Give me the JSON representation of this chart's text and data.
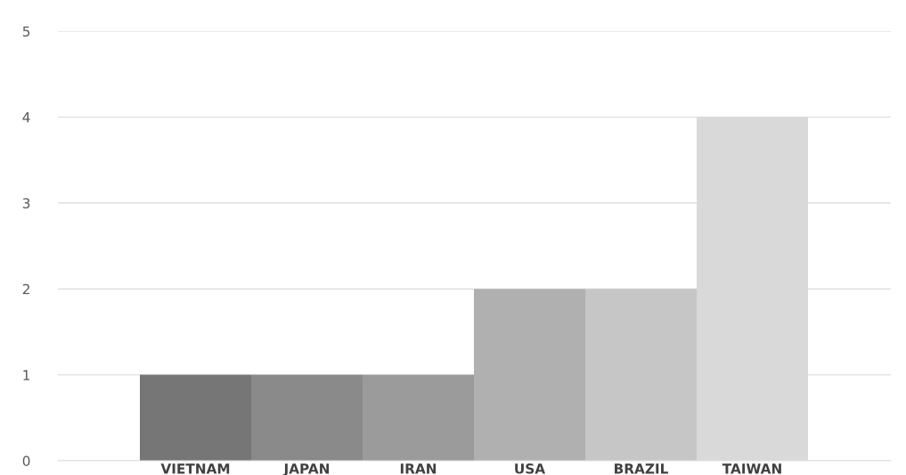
{
  "chart_data": {
    "type": "bar",
    "categories": [
      "VIETNAM",
      "JAPAN",
      "IRAN",
      "USA",
      "BRAZIL",
      "TAIWAN"
    ],
    "values": [
      1,
      1,
      1,
      2,
      2,
      4
    ],
    "colors": [
      "#767676",
      "#8a8a8a",
      "#9b9b9b",
      "#b0b0b0",
      "#c6c6c6",
      "#d9d9d9"
    ],
    "ylim": [
      0,
      5
    ],
    "yticks": [
      0,
      1,
      2,
      3,
      4,
      5
    ],
    "grid": "y"
  }
}
